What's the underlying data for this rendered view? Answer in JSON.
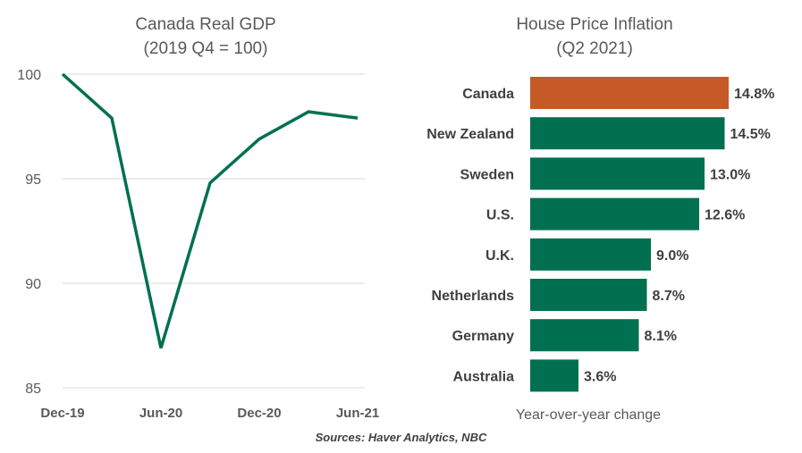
{
  "chart_data": [
    {
      "type": "line",
      "title": "Canada Real GDP",
      "subtitle": "(2019 Q4 = 100)",
      "x": [
        "Dec-19",
        "Mar-20",
        "Jun-20",
        "Sep-20",
        "Dec-20",
        "Mar-21",
        "Jun-21"
      ],
      "x_tick_labels": [
        "Dec-19",
        "Jun-20",
        "Dec-20",
        "Jun-21"
      ],
      "series": [
        {
          "values": [
            100.0,
            97.9,
            86.9,
            94.8,
            96.9,
            98.2,
            97.9
          ]
        }
      ],
      "y_ticks": [
        "100",
        "95",
        "90",
        "85"
      ],
      "ylim": [
        85,
        100
      ],
      "grid": true,
      "line_color": "#007050"
    },
    {
      "type": "bar",
      "orientation": "horizontal",
      "title": "House Price Inflation",
      "subtitle": "(Q2 2021)",
      "categories": [
        "Canada",
        "New Zealand",
        "Sweden",
        "U.S.",
        "U.K.",
        "Netherlands",
        "Germany",
        "Australia"
      ],
      "values": [
        14.8,
        14.5,
        13.0,
        12.6,
        9.0,
        8.7,
        8.1,
        3.6
      ],
      "value_labels": [
        "14.8%",
        "14.5%",
        "13.0%",
        "12.6%",
        "9.0%",
        "8.7%",
        "8.1%",
        "3.6%"
      ],
      "xlabel": "Year-over-year change",
      "highlight_color": "#C55A28",
      "bar_color": "#007050"
    }
  ],
  "source": "Sources: Haver Analytics, NBC"
}
